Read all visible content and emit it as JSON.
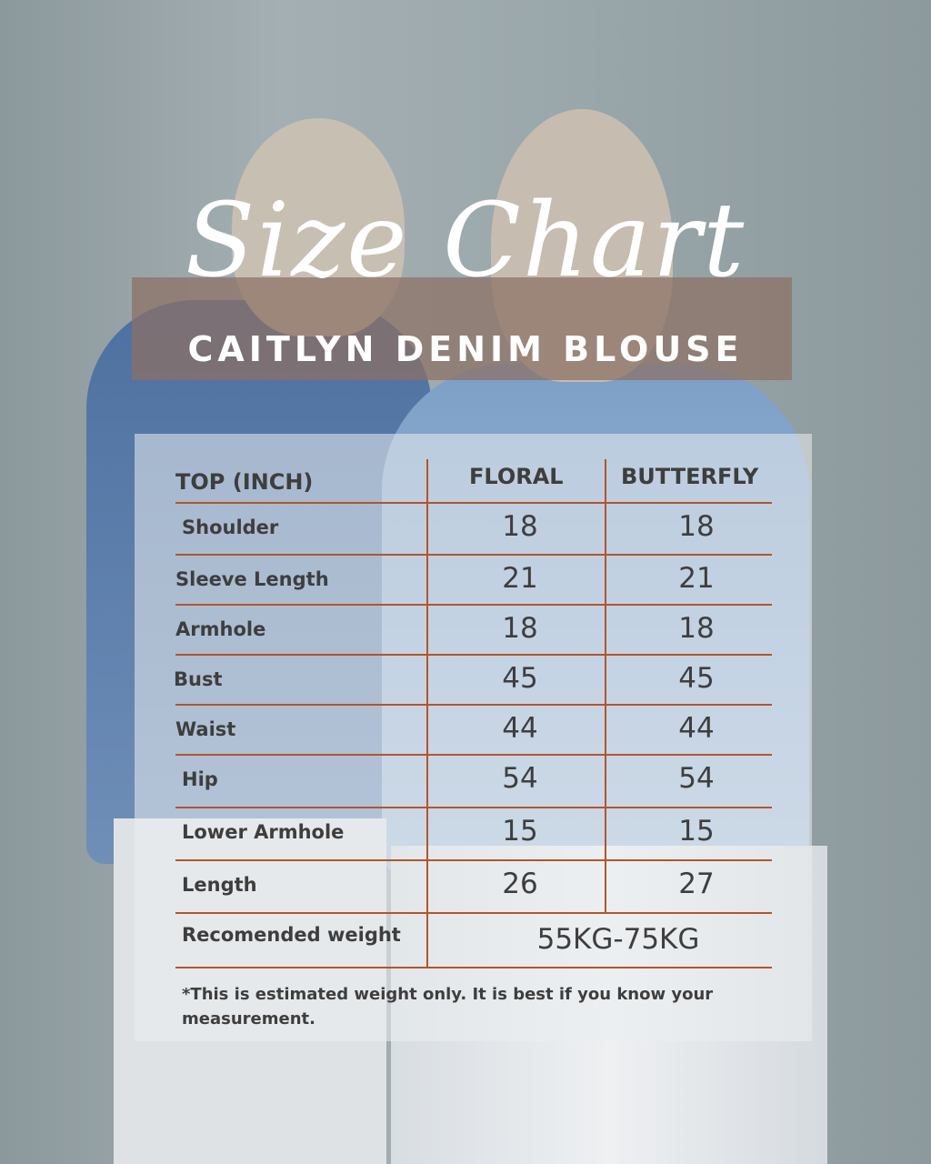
{
  "title": "Size Chart",
  "subtitle": "CAITLYN DENIM BLOUSE",
  "table": {
    "header": {
      "label": "TOP (INCH)",
      "col1": "FLORAL",
      "col2": "BUTTERFLY"
    },
    "rows": [
      {
        "label": "Shoulder",
        "floral": "18",
        "butterfly": "18"
      },
      {
        "label": "Sleeve Length",
        "floral": "21",
        "butterfly": "21"
      },
      {
        "label": "Armhole",
        "floral": "18",
        "butterfly": "18"
      },
      {
        "label": "Bust",
        "floral": "45",
        "butterfly": "45"
      },
      {
        "label": "Waist",
        "floral": "44",
        "butterfly": "44"
      },
      {
        "label": "Hip",
        "floral": "54",
        "butterfly": "54"
      },
      {
        "label": "Lower Armhole",
        "floral": "15",
        "butterfly": "15"
      },
      {
        "label": "Length",
        "floral": "26",
        "butterfly": "27"
      }
    ],
    "weight": {
      "label": "Recomended weight",
      "value": "55KG-75KG"
    }
  },
  "note": "*This is estimated weight only. It is best if you know your measurement.",
  "colors": {
    "line": "#b3552b",
    "text": "#3e3e3e",
    "band": "#8c7064"
  }
}
